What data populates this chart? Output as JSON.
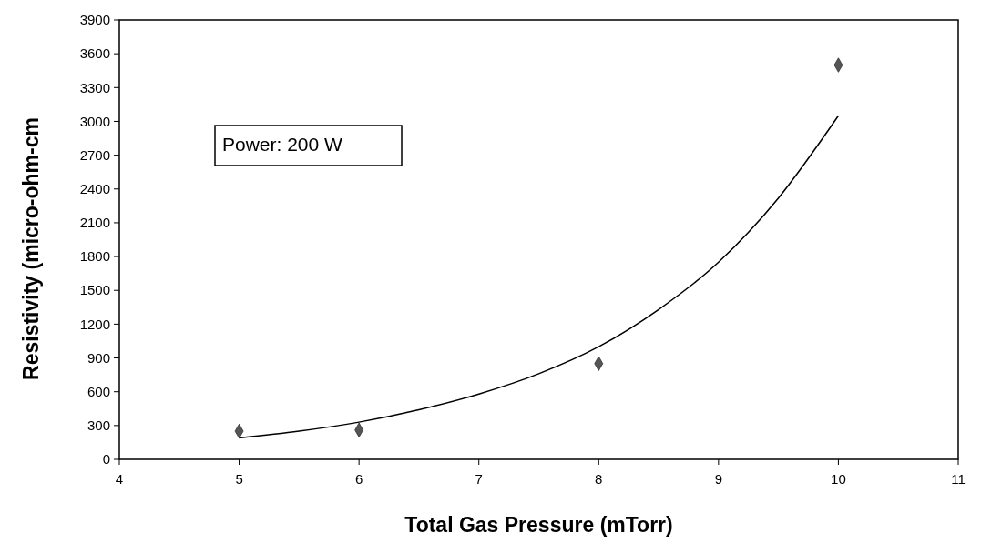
{
  "chart_data": {
    "type": "scatter",
    "xlabel": "Total Gas Pressure (mTorr)",
    "ylabel": "Resistivity (micro-ohm-cm",
    "annotations": [
      "Power: 200 W"
    ],
    "xlim": [
      4,
      11
    ],
    "xticks": [
      4,
      5,
      6,
      7,
      8,
      9,
      10,
      11
    ],
    "ylim": [
      0,
      3900
    ],
    "yticks": [
      0,
      300,
      600,
      900,
      1200,
      1500,
      1800,
      2100,
      2400,
      2700,
      3000,
      3300,
      3600,
      3900
    ],
    "grid": false,
    "marker": "diamond",
    "series": [
      {
        "color": "#555555",
        "x": [
          5,
          6,
          8,
          10
        ],
        "values": [
          250,
          260,
          850,
          3500
        ]
      },
      {
        "type": "line",
        "color": "#000000",
        "line_style": "solid",
        "marker": "none",
        "x": [
          5,
          5.5,
          6,
          6.5,
          7,
          7.5,
          8,
          8.5,
          9,
          9.5,
          10
        ],
        "values": [
          190,
          250,
          330,
          440,
          580,
          760,
          1000,
          1330,
          1750,
          2320,
          3050
        ]
      }
    ]
  }
}
